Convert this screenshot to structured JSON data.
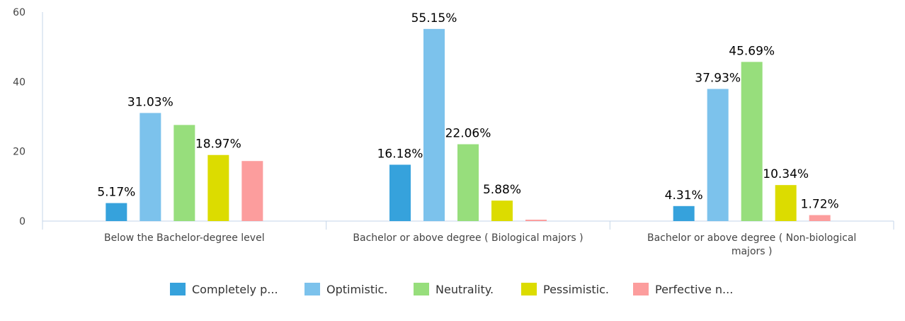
{
  "chart_data": {
    "type": "bar",
    "categories": [
      [
        "Below the Bachelor-degree level"
      ],
      [
        "Bachelor or above degree ( Biological majors )"
      ],
      [
        "Bachelor or above degree ( Non-biological",
        "majors )"
      ]
    ],
    "y_ticks": [
      "0",
      "20",
      "40",
      "60"
    ],
    "ylim": [
      0,
      60
    ],
    "grid": false,
    "legend_position": "bottom",
    "series": [
      {
        "name": "Completely p...",
        "color": "#36a2dc",
        "values": [
          5.17,
          16.18,
          4.31
        ],
        "labels": [
          "5.17%",
          "16.18%",
          "4.31%"
        ]
      },
      {
        "name": "Optimistic.",
        "color": "#7cc2ec",
        "values": [
          31.03,
          55.15,
          37.93
        ],
        "labels": [
          "31.03%",
          "55.15%",
          "37.93%"
        ]
      },
      {
        "name": "Neutrality.",
        "color": "#97de7c",
        "values": [
          27.59,
          22.06,
          45.69
        ],
        "labels": [
          "",
          "22.06%",
          "45.69%"
        ]
      },
      {
        "name": "Pessimistic.",
        "color": "#dcdc00",
        "values": [
          18.97,
          5.88,
          10.34
        ],
        "labels": [
          "18.97%",
          "5.88%",
          "10.34%"
        ]
      },
      {
        "name": "Perfective n...",
        "color": "#fc9d9d",
        "values": [
          17.24,
          0.4,
          1.72
        ],
        "labels": [
          "",
          "",
          "1.72%"
        ]
      }
    ]
  }
}
